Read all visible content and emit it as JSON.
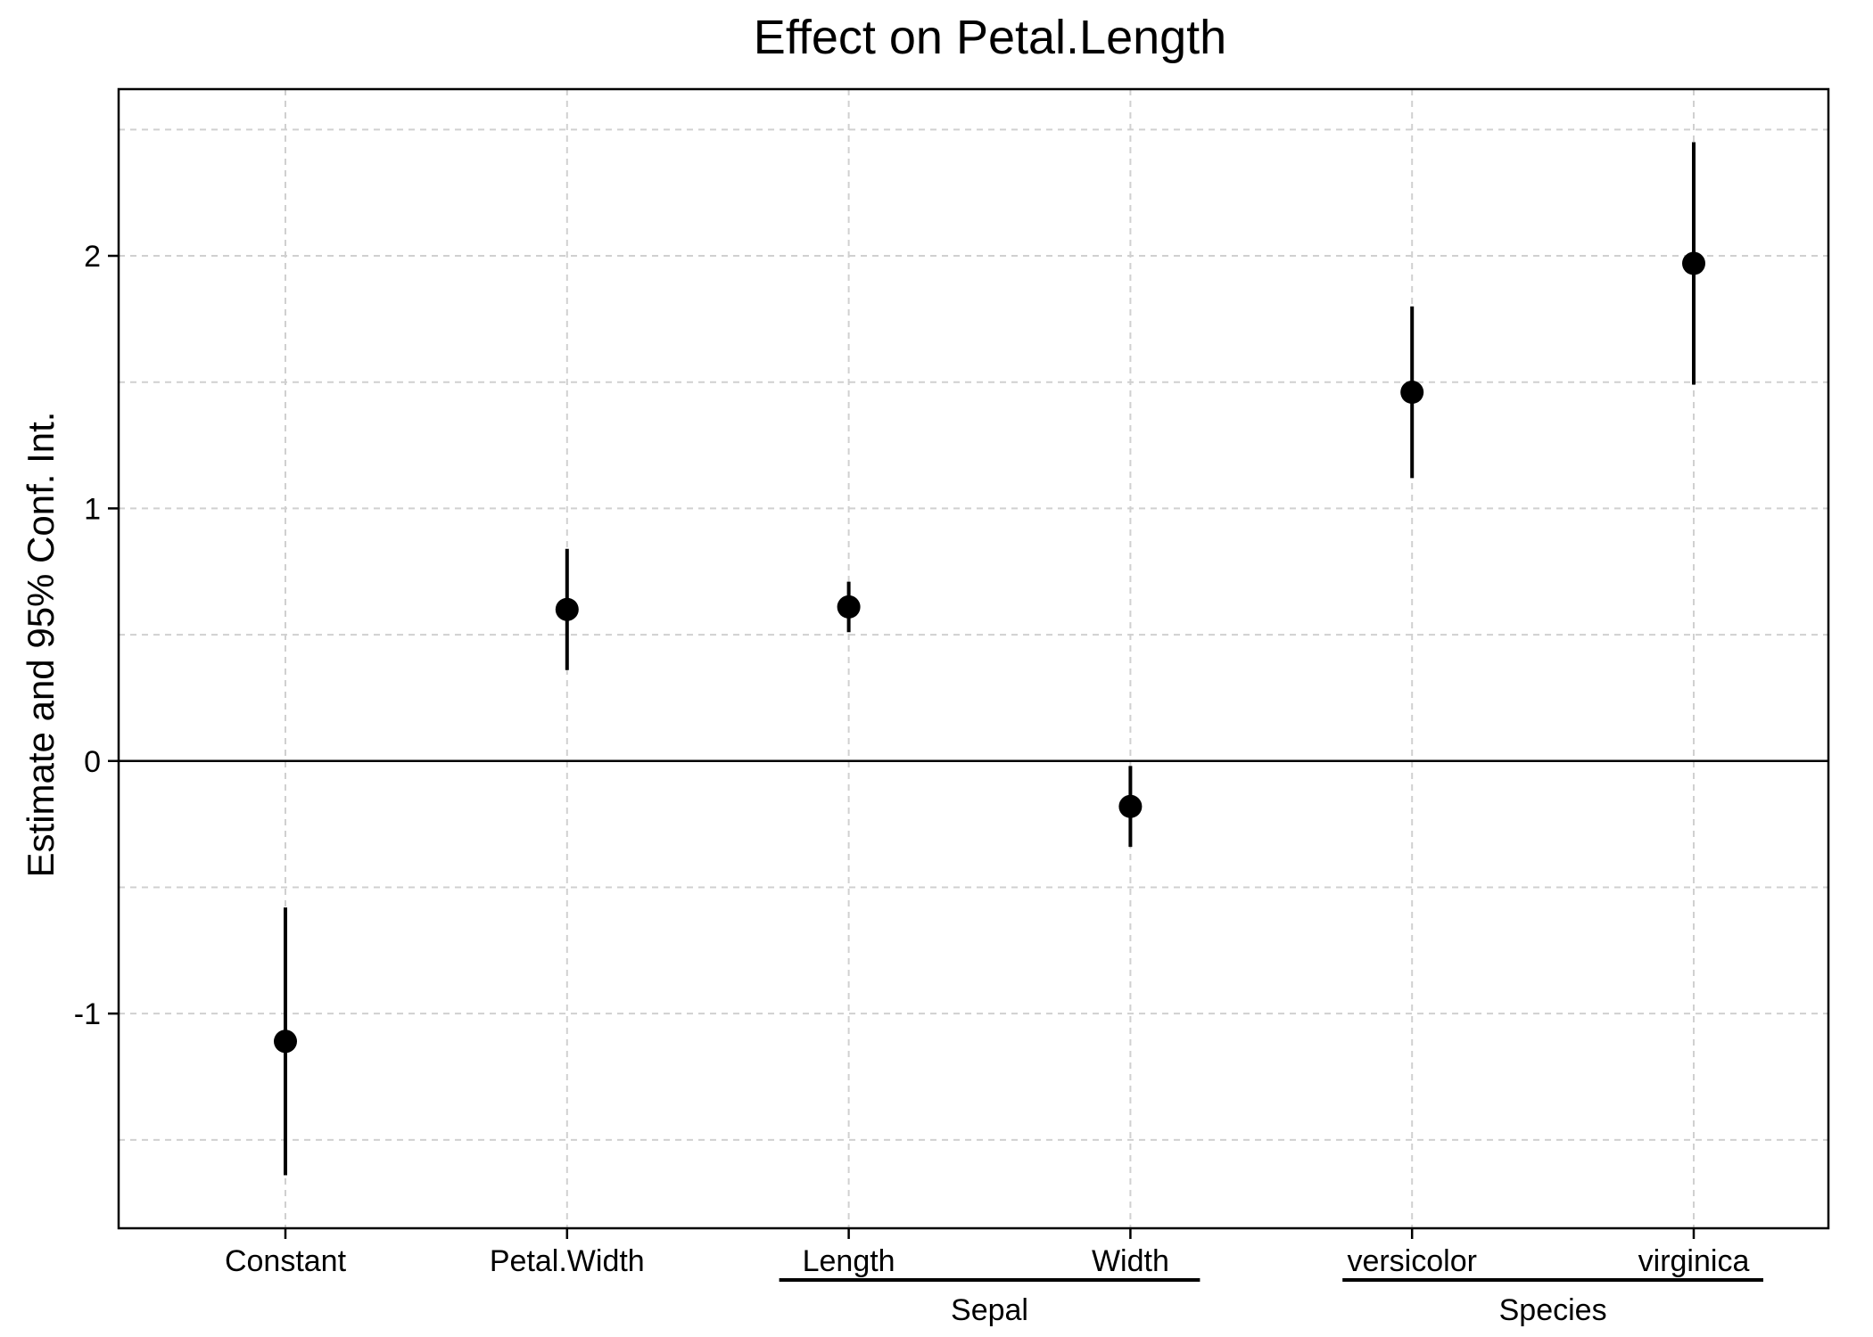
{
  "chart_data": {
    "type": "scatter",
    "title": "Effect on Petal.Length",
    "xlabel": "",
    "ylabel": "Estimate and 95% Conf. Int.",
    "ylim": [
      -1.85,
      2.66
    ],
    "yticks": [
      -1,
      0,
      1,
      2
    ],
    "ytick_labels": [
      "-1",
      "0",
      "1",
      "2"
    ],
    "y_minor_gridlines": [
      -1.5,
      -0.5,
      0.5,
      1.5,
      2.5
    ],
    "grid": true,
    "reference_line": 0,
    "categories": [
      "Constant",
      "Petal.Width",
      "Length",
      "Width",
      "versicolor",
      "virginica"
    ],
    "groups": [
      {
        "label": "Sepal",
        "members": [
          "Length",
          "Width"
        ]
      },
      {
        "label": "Species",
        "members": [
          "versicolor",
          "virginica"
        ]
      }
    ],
    "series": [
      {
        "estimate": [
          -1.11,
          0.6,
          0.61,
          -0.18,
          1.46,
          1.97
        ],
        "ci_low": [
          -1.64,
          0.36,
          0.51,
          -0.34,
          1.12,
          1.49
        ],
        "ci_high": [
          -0.58,
          0.84,
          0.71,
          -0.02,
          1.8,
          2.45
        ]
      }
    ],
    "colors": {
      "points": "#000000",
      "grid": "#d0d0d0",
      "axes": "#000000"
    }
  }
}
